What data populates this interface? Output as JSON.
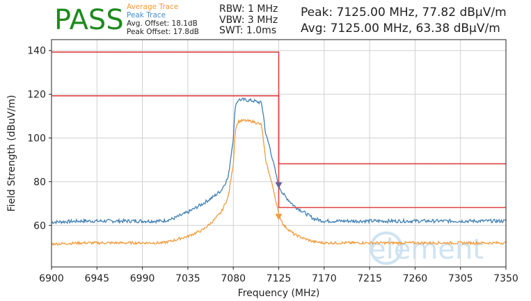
{
  "header": {
    "status": "PASS",
    "legend": {
      "average": "Average Trace",
      "peak": "Peak Trace",
      "avg_offset": "Avg. Offset: 18.1dB",
      "peak_offset": "Peak Offset: 17.8dB"
    },
    "settings": {
      "rbw": "RBW: 1 MHz",
      "vbw": "VBW: 3 MHz",
      "swt": "SWT: 1.0ms"
    },
    "readout": {
      "peak": "Peak: 7125.00 MHz, 77.82 dBμV/m",
      "avg": "Avg: 7125.00 MHz, 63.38 dBμV/m"
    }
  },
  "watermark": "element",
  "colors": {
    "status": "#1e8a1e",
    "average": "#f39a3a",
    "peak": "#3f7fb4",
    "limit": "#e04040",
    "grid": "#d0d0d0",
    "marker": "#6a5f9e"
  },
  "chart_data": {
    "type": "line",
    "xlabel": "Frequency (MHz)",
    "ylabel": "Field Strength (dBuV/m)",
    "xlim": [
      6900,
      7350
    ],
    "ylim": [
      41,
      145
    ],
    "x_ticks": [
      6900,
      6945,
      6990,
      7035,
      7080,
      7125,
      7170,
      7215,
      7260,
      7305,
      7350
    ],
    "y_ticks": [
      60,
      80,
      100,
      120,
      140
    ],
    "grid": true,
    "series": [
      {
        "name": "Peak Trace",
        "color": "#3f7fb4",
        "x": [
          6900,
          6930,
          6960,
          6990,
          7010,
          7020,
          7035,
          7050,
          7060,
          7068,
          7075,
          7080,
          7082,
          7085,
          7090,
          7100,
          7108,
          7110,
          7112,
          7116,
          7120,
          7125,
          7130,
          7140,
          7150,
          7160,
          7170,
          7200,
          7260,
          7300,
          7350
        ],
        "y": [
          61.5,
          62,
          62,
          62,
          62,
          63,
          66,
          70,
          73,
          76,
          82,
          100,
          115,
          117.5,
          117.5,
          117,
          116,
          110,
          102,
          96,
          88,
          78,
          74,
          69,
          66,
          63,
          62,
          62,
          62,
          62,
          62
        ]
      },
      {
        "name": "Average Trace",
        "color": "#f39a3a",
        "x": [
          6900,
          6930,
          6960,
          6990,
          7010,
          7020,
          7035,
          7050,
          7060,
          7068,
          7075,
          7080,
          7082,
          7085,
          7090,
          7100,
          7108,
          7110,
          7112,
          7116,
          7120,
          7125,
          7130,
          7140,
          7150,
          7160,
          7170,
          7200,
          7260,
          7300,
          7350
        ],
        "y": [
          51.5,
          52,
          52,
          52,
          52,
          53,
          55,
          58,
          62,
          66,
          73,
          88,
          104,
          107.5,
          108,
          107.5,
          106,
          98,
          90,
          83,
          76,
          65,
          60,
          56,
          54,
          52.5,
          52,
          52,
          52,
          52,
          52
        ]
      }
    ],
    "limit_lines": [
      {
        "x": [
          6900,
          7125,
          7125,
          7350
        ],
        "y": [
          139.3,
          139.3,
          88.2,
          88.2
        ]
      },
      {
        "x": [
          6900,
          7125,
          7125,
          7350
        ],
        "y": [
          119.3,
          119.3,
          68.2,
          68.2
        ]
      }
    ],
    "markers": [
      {
        "x": 7125,
        "y": 77.82,
        "color": "#6a5f9e"
      },
      {
        "x": 7125,
        "y": 63.38,
        "color": "#f39a3a"
      }
    ]
  }
}
